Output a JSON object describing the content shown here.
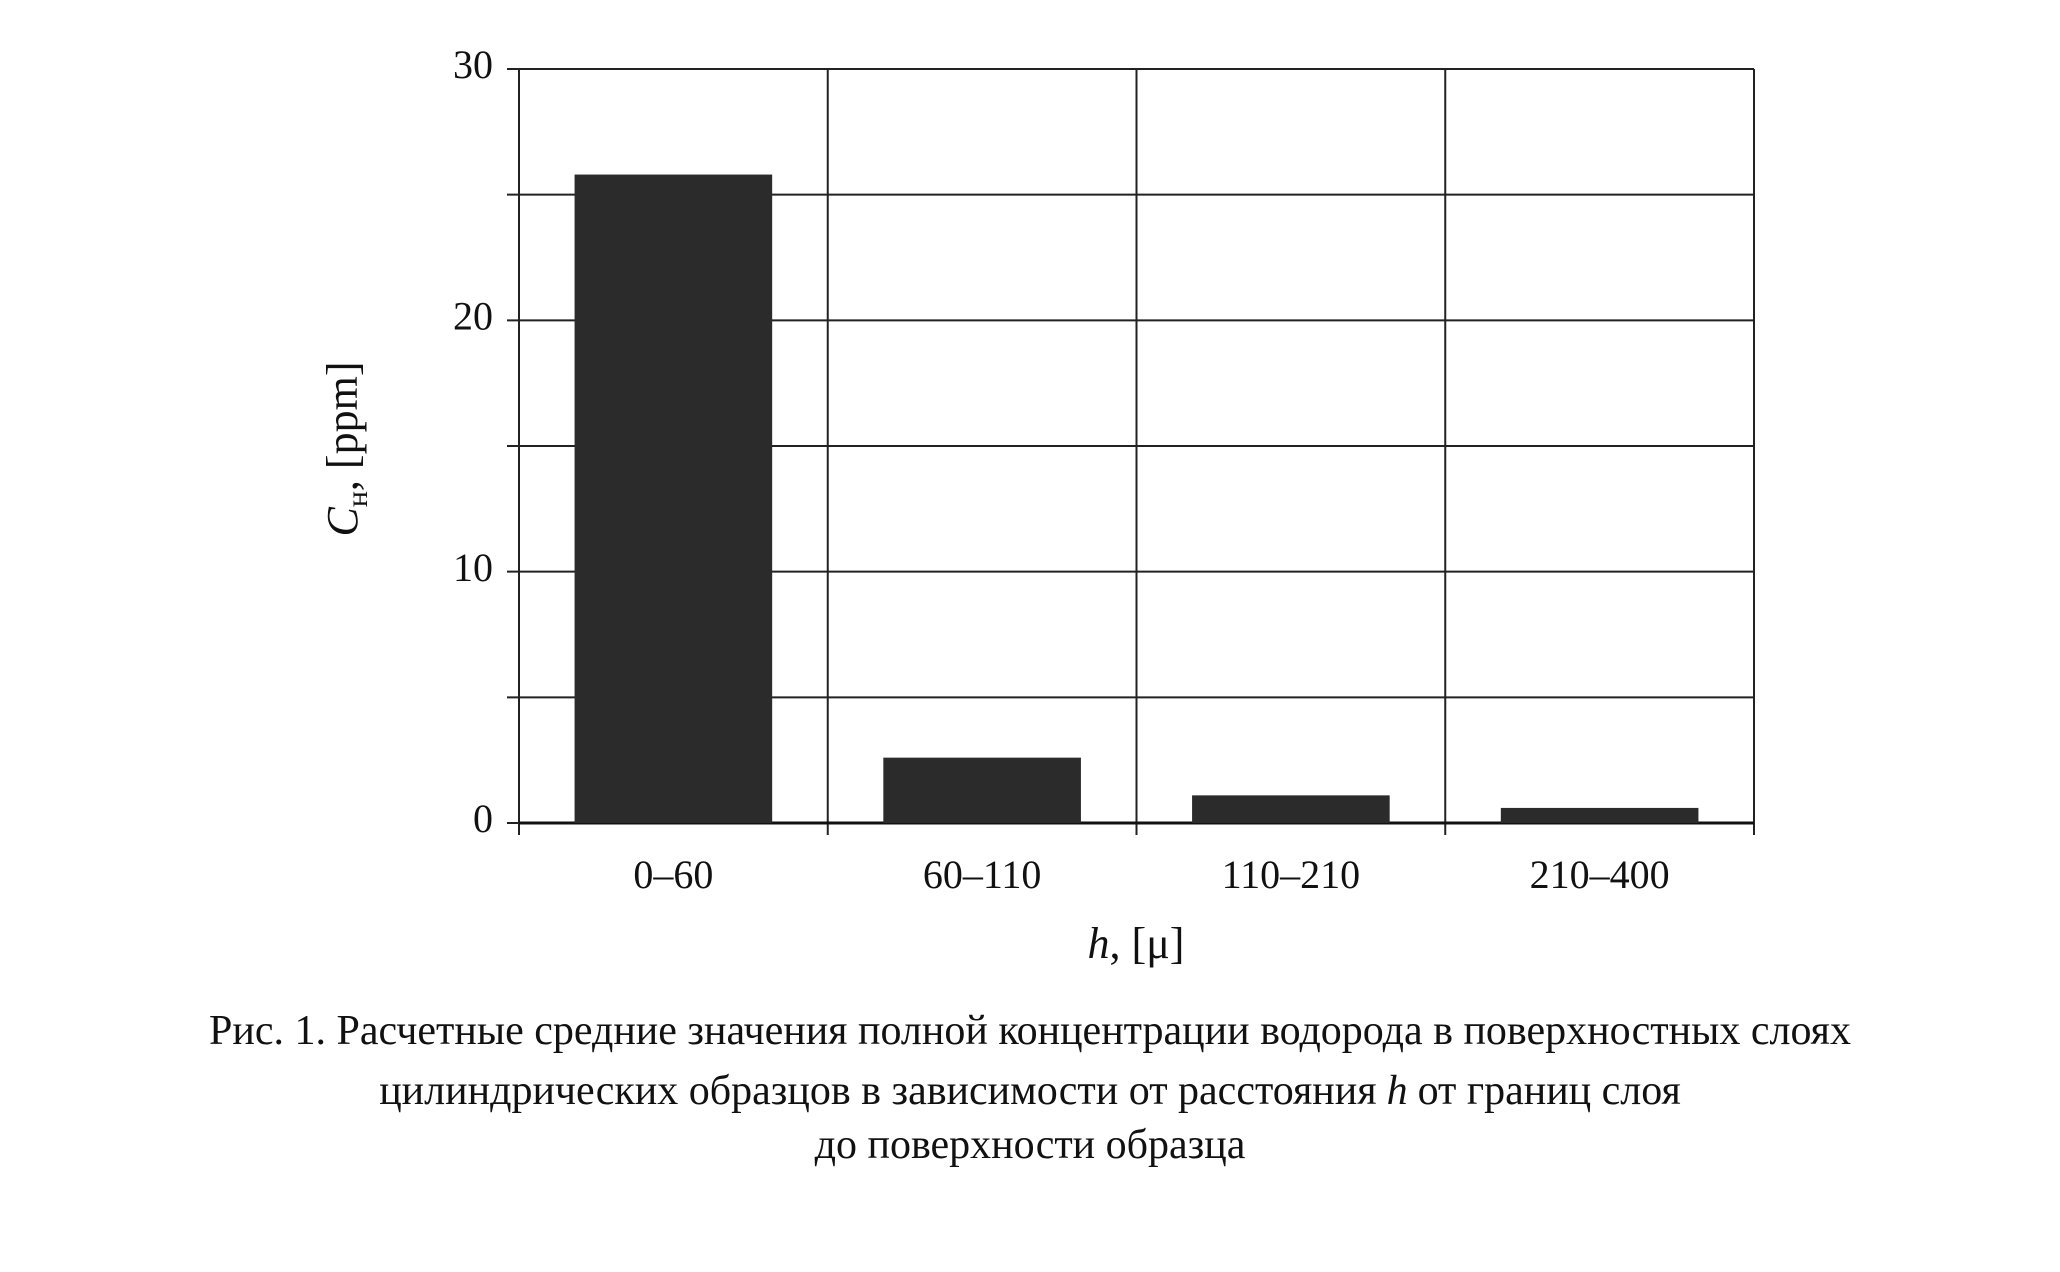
{
  "chart_data": {
    "type": "bar",
    "categories": [
      "0–60",
      "60–110",
      "110–210",
      "210–400"
    ],
    "values": [
      25.8,
      2.6,
      1.1,
      0.6
    ],
    "color": "#2b2b2b",
    "ylim": [
      0,
      30
    ],
    "yticks": [
      0,
      10,
      20,
      30
    ],
    "minor_yticks": [
      5,
      15,
      25
    ],
    "grid": true,
    "y_label": {
      "symbol": "C",
      "subscript": "н",
      "unit": ", [ppm]"
    },
    "x_label": {
      "symbol": "h",
      "unit": ", [μ]"
    },
    "caption": {
      "line1": "Рис. 1. Расчетные средние значения полной концентрации водорода в поверхностных слоях",
      "line2_before": "цилиндрических образцов в зависимости от расстояния",
      "line2_symbol": "h",
      "line2_after": "от границ слоя",
      "line3": "до поверхности образца"
    }
  }
}
